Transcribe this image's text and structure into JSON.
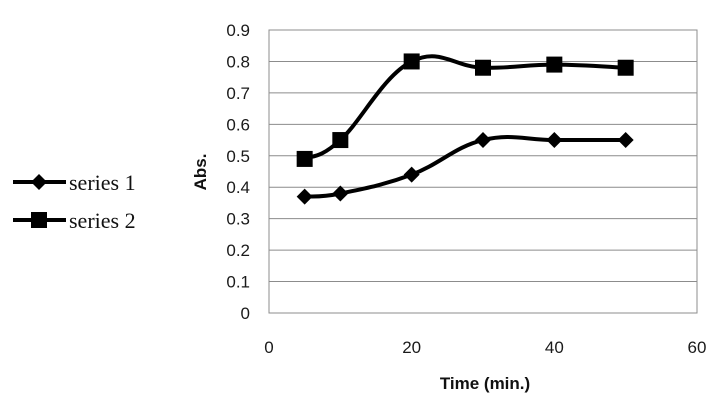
{
  "chart_data": {
    "type": "line",
    "title": "",
    "xlabel": "Time (min.)",
    "ylabel": "Abs.",
    "xlim": [
      0,
      60
    ],
    "ylim": [
      0,
      0.9
    ],
    "xticks": [
      "0",
      "20",
      "40",
      "60"
    ],
    "yticks": [
      "0",
      "0.1",
      "0.2",
      "0.3",
      "0.4",
      "0.5",
      "0.6",
      "0.7",
      "0.8",
      "0.9"
    ],
    "grid": "horizontal",
    "legend_position": "left",
    "line_color": "#000000",
    "series": [
      {
        "name": "series 1",
        "marker": "diamond",
        "x": [
          5,
          10,
          20,
          30,
          40,
          50
        ],
        "y": [
          0.37,
          0.38,
          0.44,
          0.55,
          0.55,
          0.55
        ]
      },
      {
        "name": "series 2",
        "marker": "square",
        "x": [
          5,
          10,
          20,
          30,
          40,
          50
        ],
        "y": [
          0.49,
          0.55,
          0.8,
          0.78,
          0.79,
          0.78
        ]
      }
    ]
  }
}
